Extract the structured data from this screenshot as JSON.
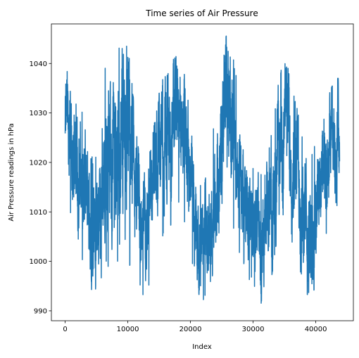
{
  "chart_data": {
    "type": "line",
    "title": "Time series of Air Pressure",
    "xlabel": "Index",
    "ylabel": "Air Pressure readings in hPa",
    "xlim": [
      -2200,
      46000
    ],
    "ylim": [
      988,
      1048
    ],
    "xticks": [
      0,
      10000,
      20000,
      30000,
      40000
    ],
    "xtick_labels": [
      "0",
      "10000",
      "20000",
      "30000",
      "40000"
    ],
    "yticks": [
      990,
      1000,
      1010,
      1020,
      1030,
      1040
    ],
    "ytick_labels": [
      "990",
      "1000",
      "1010",
      "1020",
      "1030",
      "1040"
    ],
    "grid": false,
    "legend": "none",
    "color": "#1f77b4",
    "series": [
      {
        "x_range": [
          0,
          43800
        ],
        "approx_period": 8760,
        "seasonal_envelope": [
          {
            "x": 0,
            "min": 1014,
            "max": 1039,
            "center": 1027
          },
          {
            "x": 2000,
            "min": 1002,
            "max": 1033,
            "center": 1018
          },
          {
            "x": 4500,
            "min": 994,
            "max": 1021,
            "center": 1005
          },
          {
            "x": 7000,
            "min": 999,
            "max": 1043,
            "center": 1021
          },
          {
            "x": 9500,
            "min": 1000,
            "max": 1045,
            "center": 1027
          },
          {
            "x": 12500,
            "min": 993,
            "max": 1018,
            "center": 1004
          },
          {
            "x": 16000,
            "min": 1005,
            "max": 1038,
            "center": 1024
          },
          {
            "x": 18000,
            "min": 1011,
            "max": 1042,
            "center": 1027
          },
          {
            "x": 22000,
            "min": 992,
            "max": 1016,
            "center": 1003
          },
          {
            "x": 26000,
            "min": 1008,
            "max": 1046,
            "center": 1027
          },
          {
            "x": 29500,
            "min": 996,
            "max": 1020,
            "center": 1008
          },
          {
            "x": 31500,
            "min": 991,
            "max": 1018,
            "center": 1004
          },
          {
            "x": 35000,
            "min": 1007,
            "max": 1040,
            "center": 1027
          },
          {
            "x": 39000,
            "min": 993,
            "max": 1022,
            "center": 1006
          },
          {
            "x": 43500,
            "min": 1011,
            "max": 1037,
            "center": 1026
          }
        ]
      }
    ]
  }
}
